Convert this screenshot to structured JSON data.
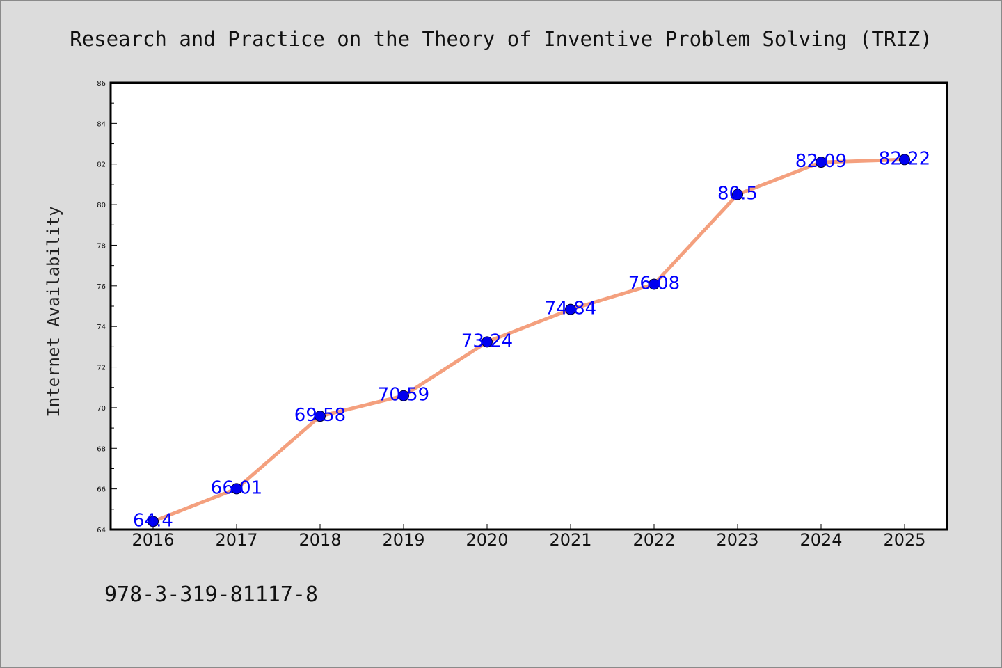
{
  "chart_data": {
    "type": "line",
    "title": "Research and Practice on the Theory of Inventive Problem Solving (TRIZ)",
    "xlabel": "",
    "ylabel": "Internet Availability",
    "categories": [
      "2016",
      "2017",
      "2018",
      "2019",
      "2020",
      "2021",
      "2022",
      "2023",
      "2024",
      "2025"
    ],
    "series": [
      {
        "values": [
          64.4,
          66.01,
          69.58,
          70.59,
          73.24,
          74.84,
          76.08,
          80.5,
          82.09,
          82.22
        ],
        "labels": [
          "64.4",
          "66.01",
          "69.58",
          "70.59",
          "73.24",
          "74.84",
          "76.08",
          "80.5",
          "82.09",
          "82.22"
        ]
      }
    ],
    "ylim": [
      64,
      86
    ],
    "yticks": [
      "64",
      "66",
      "68",
      "70",
      "72",
      "74",
      "76",
      "78",
      "80",
      "82",
      "84",
      "86"
    ],
    "grid": false,
    "legend": "none",
    "colors": {
      "line": "#f4a07e",
      "marker": "#0000ee",
      "data_label": "#0000ff",
      "background": "#dcdcdc",
      "plot_background": "#ffffff"
    }
  },
  "footnote": "978-3-319-81117-8"
}
